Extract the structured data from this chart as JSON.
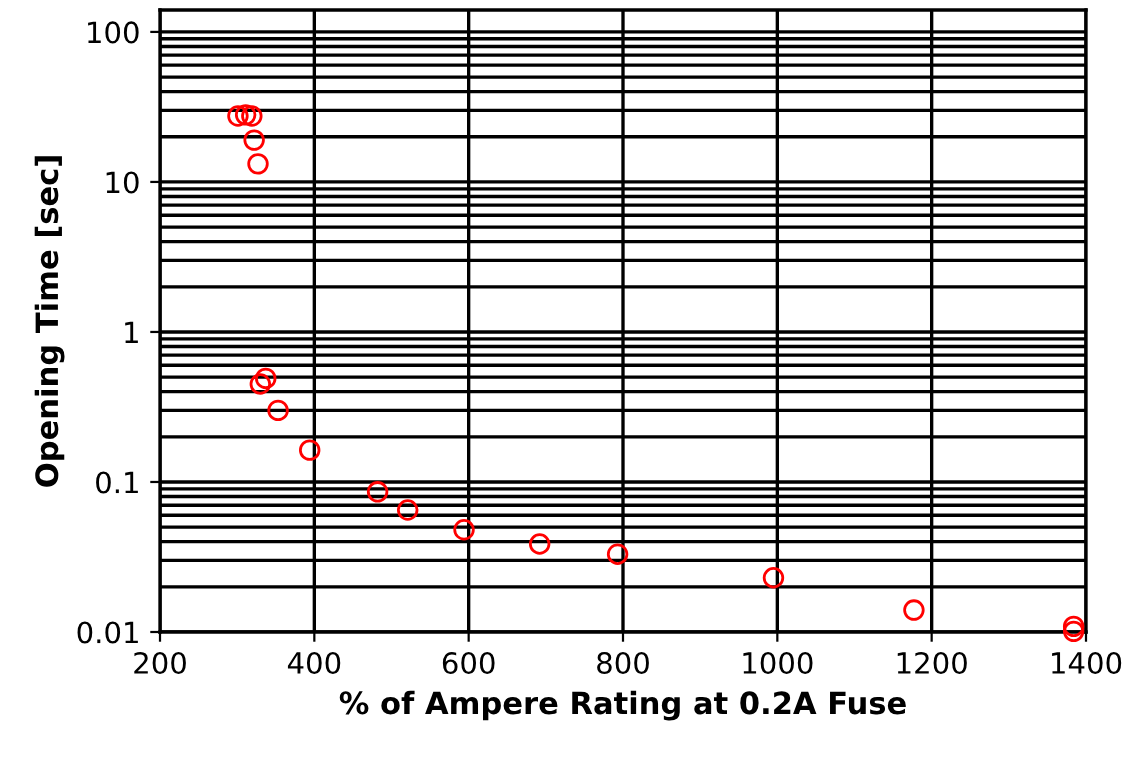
{
  "chart_data": {
    "type": "scatter",
    "xlabel": "% of Ampere Rating at 0.2A Fuse",
    "ylabel": "Opening Time [sec]",
    "x": [
      301,
      311,
      319,
      322,
      327,
      330,
      337,
      353,
      394,
      482,
      521,
      594,
      692,
      793,
      995,
      1177,
      1384,
      1384
    ],
    "series": [
      {
        "color": "#ff0000",
        "values": [
          27.5,
          28,
          27.5,
          19,
          13.2,
          0.45,
          0.49,
          0.3,
          0.163,
          0.086,
          0.065,
          0.048,
          0.0386,
          0.033,
          0.023,
          0.014,
          0.0109,
          0.0101
        ]
      }
    ],
    "marker": "circle",
    "log": "y",
    "grid": true,
    "xlim": [
      200,
      1400
    ],
    "xticks": [
      200,
      400,
      600,
      800,
      1000,
      1200,
      1400
    ],
    "ylim": [
      0.01,
      140
    ],
    "yticks": [
      {
        "value": 0.01,
        "label": "0.01"
      },
      {
        "value": 0.1,
        "label": "0.1"
      },
      {
        "value": 1,
        "label": "1"
      },
      {
        "value": 10,
        "label": "10"
      },
      {
        "value": 100,
        "label": "100"
      }
    ]
  }
}
